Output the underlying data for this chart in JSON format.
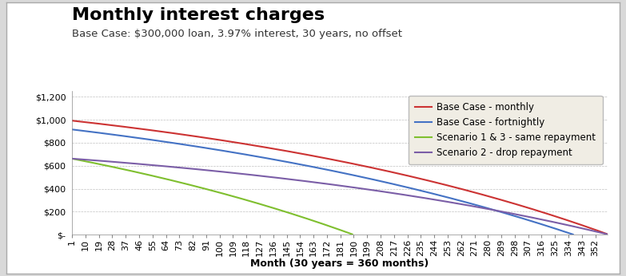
{
  "title": "Monthly interest charges",
  "subtitle": "Base Case: $300,000 loan, 3.97% interest, 30 years, no offset",
  "xlabel": "Month (30 years = 360 months)",
  "loan": 300000,
  "annual_rate": 0.0397,
  "n_months": 360,
  "legend_labels": [
    "Base Case - monthly",
    "Base Case - fortnightly",
    "Scenario 1 & 3 - same repayment",
    "Scenario 2 - drop repayment"
  ],
  "line_colors": [
    "#cc3333",
    "#4472c4",
    "#7fbf2f",
    "#7b5ea7"
  ],
  "ytick_labels": [
    "$-",
    "$200",
    "$400",
    "$600",
    "$800",
    "$1,000",
    "$1,200"
  ],
  "ytick_values": [
    0,
    200,
    400,
    600,
    800,
    1000,
    1200
  ],
  "xtick_values": [
    1,
    10,
    19,
    28,
    37,
    46,
    55,
    64,
    73,
    82,
    91,
    100,
    109,
    118,
    127,
    136,
    145,
    154,
    163,
    172,
    181,
    190,
    199,
    208,
    217,
    226,
    235,
    244,
    253,
    262,
    271,
    280,
    289,
    298,
    307,
    316,
    325,
    334,
    343,
    352
  ],
  "ylim": [
    0,
    1250
  ],
  "background_color": "#ffffff",
  "plot_bg": "#ffffff",
  "legend_bg": "#f0ede4",
  "outer_bg": "#d9d9d9",
  "title_fontsize": 16,
  "subtitle_fontsize": 9.5,
  "axis_label_fontsize": 9,
  "tick_fontsize": 8,
  "legend_fontsize": 8.5
}
